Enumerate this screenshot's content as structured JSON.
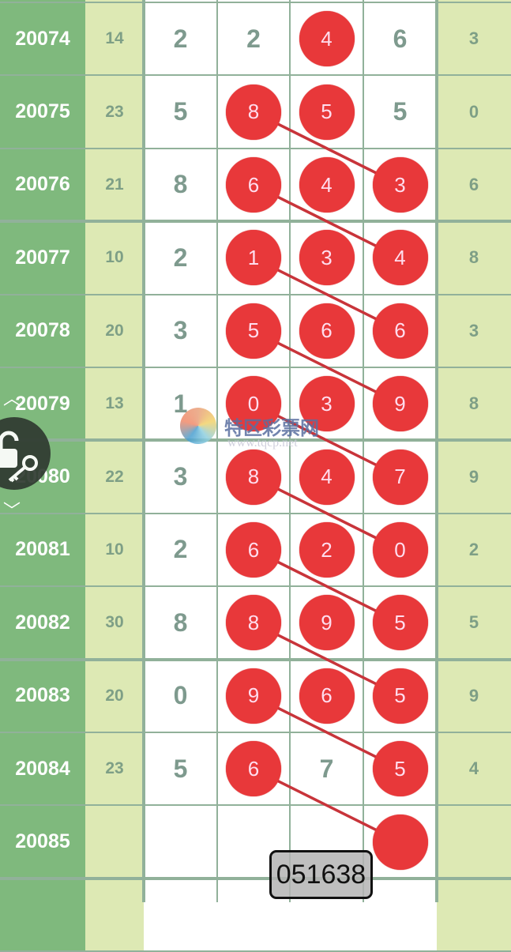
{
  "colors": {
    "issue_bg": "#7fb97d",
    "sum_bg": "#dde9b4",
    "ball": "#e8383a",
    "link": "#c8343a",
    "grid": "#91b19a"
  },
  "rows": [
    {
      "issue": "20074",
      "sum": "14",
      "d": [
        "2",
        "2",
        "4",
        "6"
      ],
      "hit": [
        false,
        false,
        true,
        false
      ],
      "tail": "3"
    },
    {
      "issue": "20075",
      "sum": "23",
      "d": [
        "5",
        "8",
        "5",
        "5"
      ],
      "hit": [
        false,
        true,
        true,
        false
      ],
      "tail": "0"
    },
    {
      "issue": "20076",
      "sum": "21",
      "d": [
        "8",
        "6",
        "4",
        "3"
      ],
      "hit": [
        false,
        true,
        true,
        true
      ],
      "tail": "6"
    },
    {
      "issue": "20077",
      "sum": "10",
      "d": [
        "2",
        "1",
        "3",
        "4"
      ],
      "hit": [
        false,
        true,
        true,
        true
      ],
      "tail": "8"
    },
    {
      "issue": "20078",
      "sum": "20",
      "d": [
        "3",
        "5",
        "6",
        "6"
      ],
      "hit": [
        false,
        true,
        true,
        true
      ],
      "tail": "3"
    },
    {
      "issue": "20079",
      "sum": "13",
      "d": [
        "1",
        "0",
        "3",
        "9"
      ],
      "hit": [
        false,
        true,
        true,
        true
      ],
      "tail": "8"
    },
    {
      "issue": "20080",
      "sum": "22",
      "d": [
        "3",
        "8",
        "4",
        "7"
      ],
      "hit": [
        false,
        true,
        true,
        true
      ],
      "tail": "9"
    },
    {
      "issue": "20081",
      "sum": "10",
      "d": [
        "2",
        "6",
        "2",
        "0"
      ],
      "hit": [
        false,
        true,
        true,
        true
      ],
      "tail": "2"
    },
    {
      "issue": "20082",
      "sum": "30",
      "d": [
        "8",
        "8",
        "9",
        "5"
      ],
      "hit": [
        false,
        true,
        true,
        true
      ],
      "tail": "5"
    },
    {
      "issue": "20083",
      "sum": "20",
      "d": [
        "0",
        "9",
        "6",
        "5"
      ],
      "hit": [
        false,
        true,
        true,
        true
      ],
      "tail": "9"
    },
    {
      "issue": "20084",
      "sum": "23",
      "d": [
        "5",
        "6",
        "7",
        "5"
      ],
      "hit": [
        false,
        true,
        false,
        true
      ],
      "tail": "4"
    },
    {
      "issue": "20085",
      "sum": "",
      "d": [
        "",
        "",
        "",
        ""
      ],
      "hit": [
        false,
        false,
        false,
        true
      ],
      "tail": ""
    },
    {
      "issue": "",
      "sum": "",
      "d": [
        "",
        "",
        "",
        ""
      ],
      "hit": [
        false,
        false,
        false,
        false
      ],
      "tail": ""
    }
  ],
  "links_from_col": 1,
  "links_to_col": 3,
  "watermark": {
    "name": "特区彩票网",
    "url": "www.tqcp.net"
  },
  "lock_overlay": {
    "icon": "lock-key-icon"
  },
  "code_popup": "051638"
}
